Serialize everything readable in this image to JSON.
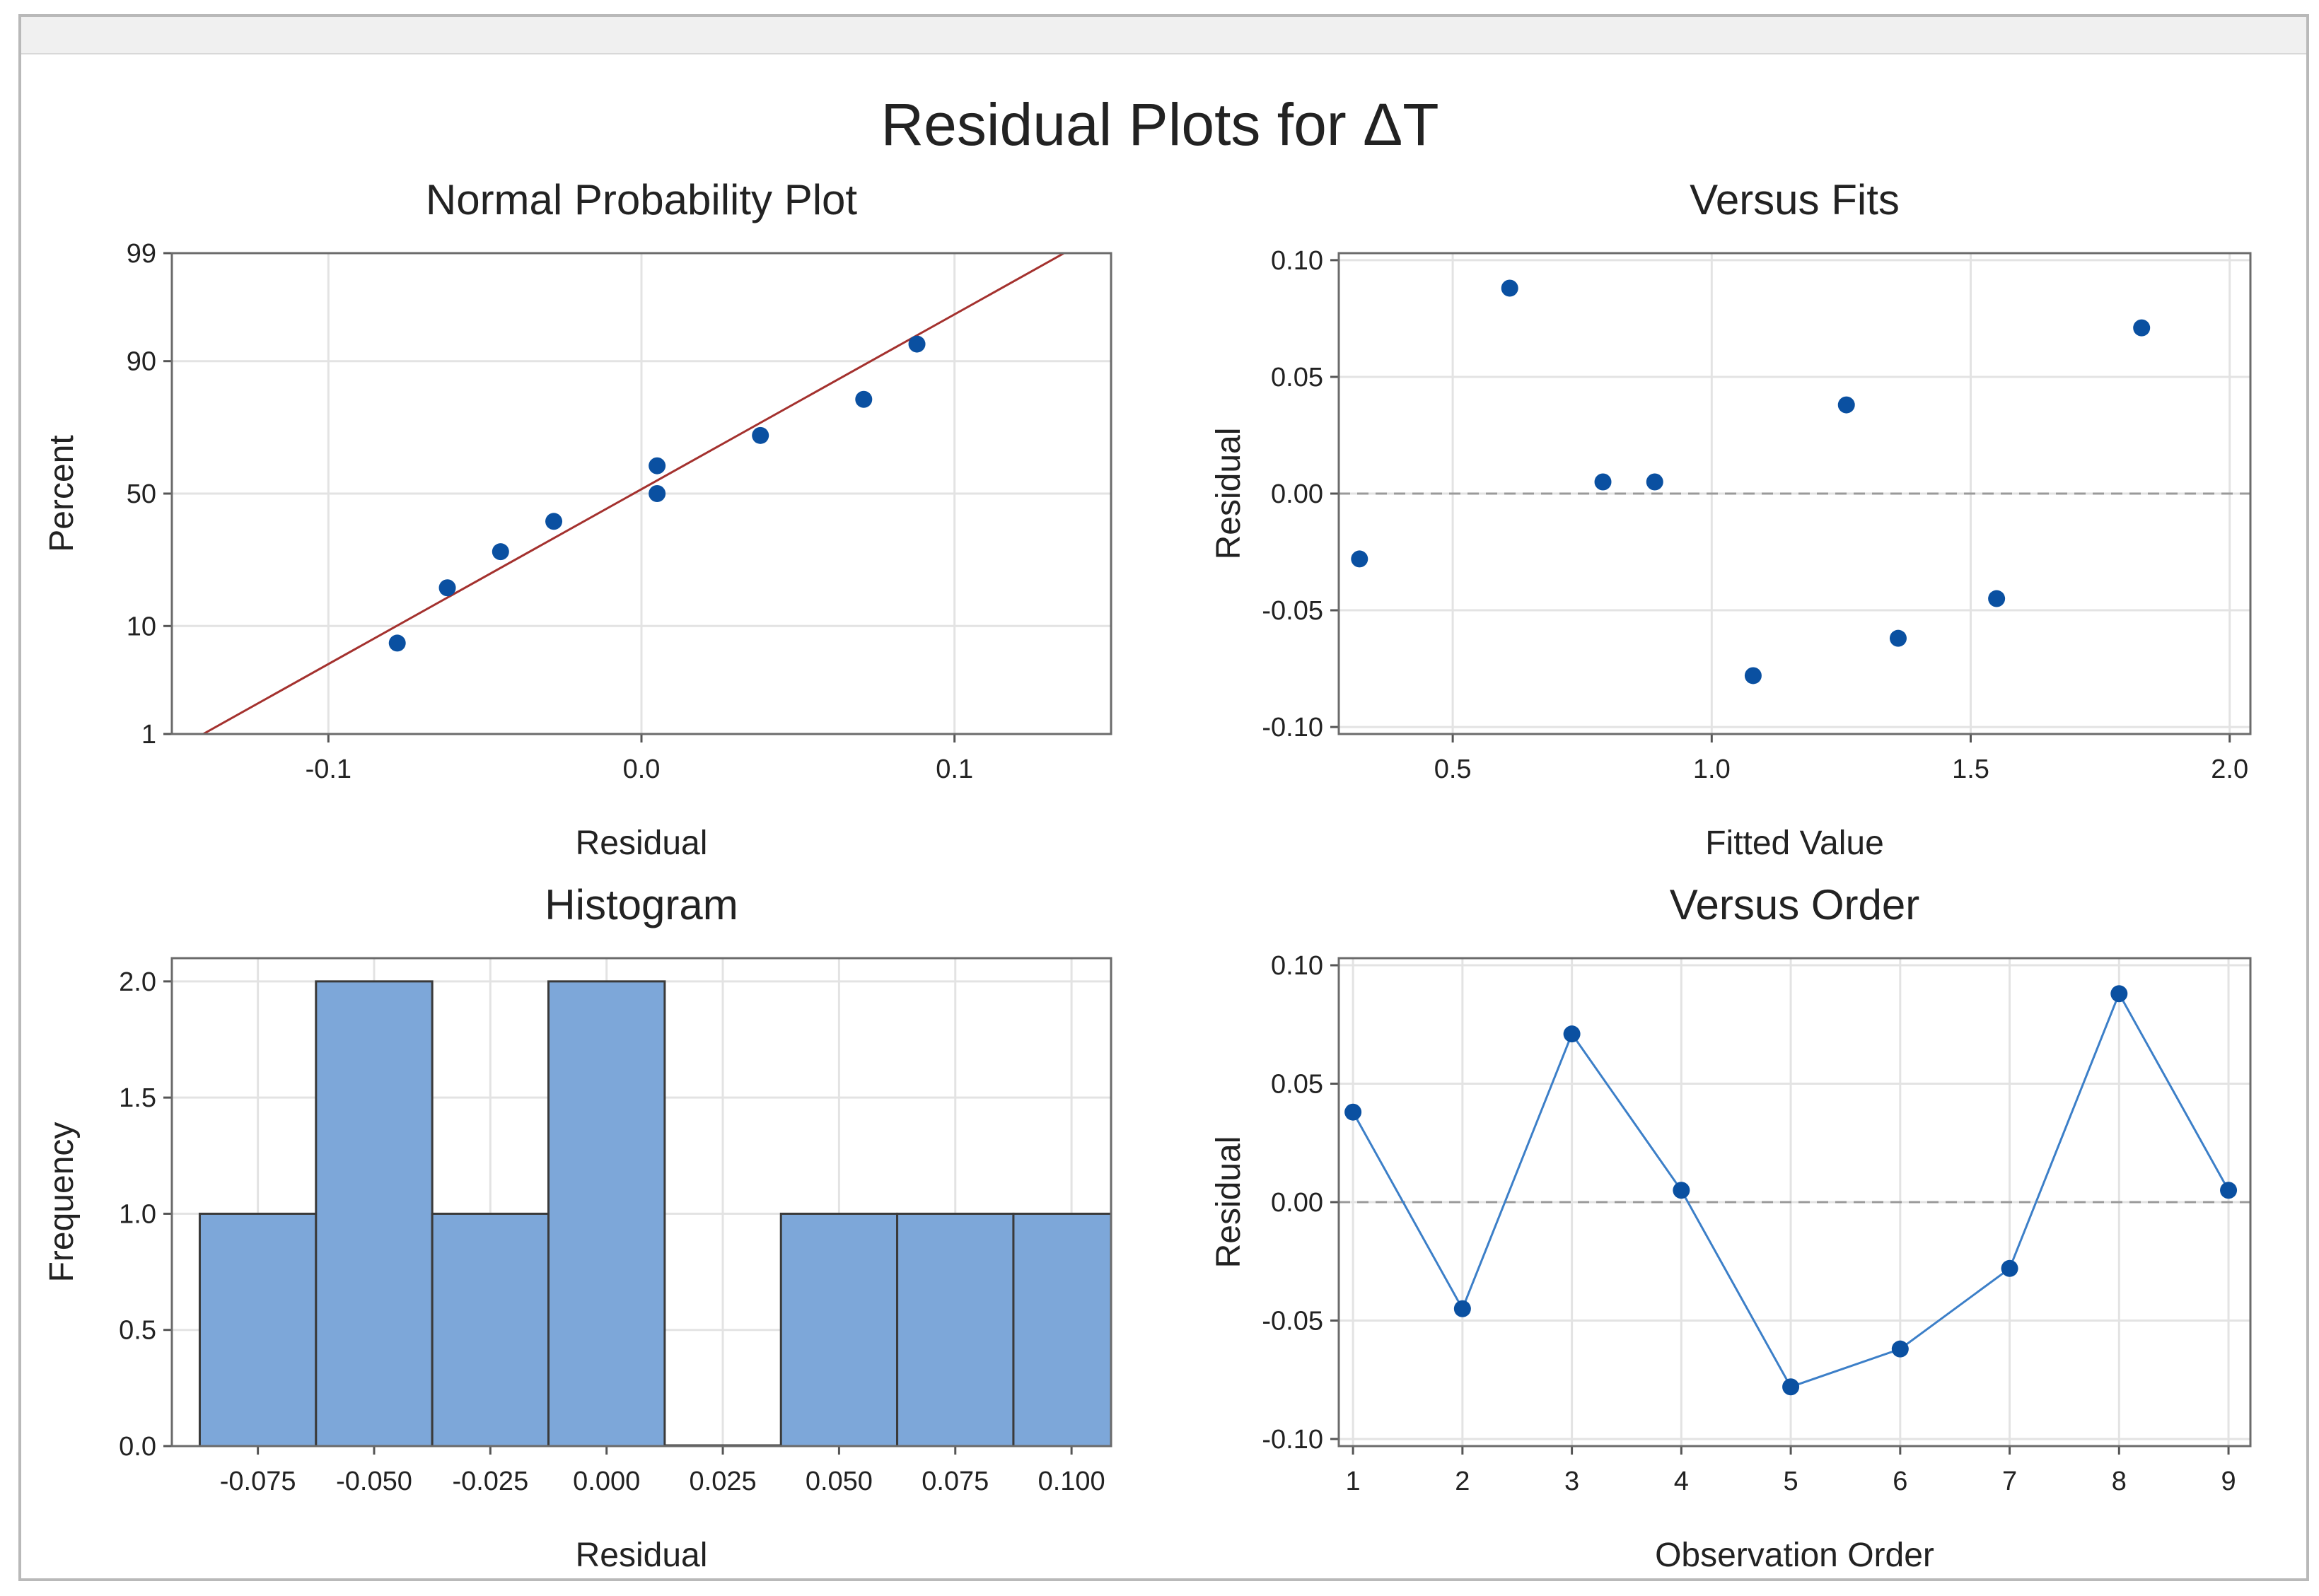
{
  "page": {
    "title": "Residual Plots for ΔT"
  },
  "colors": {
    "marker": "#0A50A1",
    "fit_line": "#A4312E",
    "bar_fill": "#7DA7D9",
    "grid": "#E3E3E3",
    "zero_line": "#9A9A9A"
  },
  "chart_data": [
    {
      "id": "normal",
      "type": "scatter",
      "title": "Normal Probability Plot",
      "xlabel": "Residual",
      "ylabel": "Percent",
      "xlim": [
        -0.15,
        0.15
      ],
      "x_ticks": [
        -0.1,
        0.0,
        0.1
      ],
      "x_tick_labels": [
        "-0.1",
        "0.0",
        "0.1"
      ],
      "y_scale": "normal-probability",
      "ylim": [
        1,
        99
      ],
      "y_ticks": [
        1,
        10,
        50,
        90,
        99
      ],
      "y_tick_labels": [
        "1",
        "10",
        "50",
        "90",
        "99"
      ],
      "points": [
        {
          "x": -0.078,
          "y": 7.4
        },
        {
          "x": -0.062,
          "y": 18.1
        },
        {
          "x": -0.045,
          "y": 28.7
        },
        {
          "x": -0.028,
          "y": 39.4
        },
        {
          "x": 0.005,
          "y": 50.0
        },
        {
          "x": 0.005,
          "y": 60.6
        },
        {
          "x": 0.038,
          "y": 71.3
        },
        {
          "x": 0.071,
          "y": 81.9
        },
        {
          "x": 0.088,
          "y": 92.6
        }
      ],
      "fit_line": {
        "x": [
          -0.14,
          0.135
        ],
        "y": [
          1,
          99
        ]
      },
      "grid": true
    },
    {
      "id": "fits",
      "type": "scatter",
      "title": "Versus Fits",
      "xlabel": "Fitted Value",
      "ylabel": "Residual",
      "xlim": [
        0.28,
        2.04
      ],
      "x_ticks": [
        0.5,
        1.0,
        1.5,
        2.0
      ],
      "x_tick_labels": [
        "0.5",
        "1.0",
        "1.5",
        "2.0"
      ],
      "ylim": [
        -0.103,
        0.103
      ],
      "y_ticks": [
        -0.1,
        -0.05,
        0.0,
        0.05,
        0.1
      ],
      "y_tick_labels": [
        "-0.10",
        "-0.05",
        "0.00",
        "0.05",
        "0.10"
      ],
      "points": [
        {
          "x": 0.32,
          "y": -0.028
        },
        {
          "x": 0.61,
          "y": 0.088
        },
        {
          "x": 0.79,
          "y": 0.005
        },
        {
          "x": 0.89,
          "y": 0.005
        },
        {
          "x": 1.08,
          "y": -0.078
        },
        {
          "x": 1.26,
          "y": 0.038
        },
        {
          "x": 1.36,
          "y": -0.062
        },
        {
          "x": 1.55,
          "y": -0.045
        },
        {
          "x": 1.83,
          "y": 0.071
        }
      ],
      "reference_line": 0,
      "grid": true
    },
    {
      "id": "hist",
      "type": "bar",
      "title": "Histogram",
      "xlabel": "Residual",
      "ylabel": "Frequency",
      "bin_width": 0.025,
      "xlim": [
        -0.0935,
        0.1085
      ],
      "x_ticks": [
        -0.075,
        -0.05,
        -0.025,
        0.0,
        0.025,
        0.05,
        0.075,
        0.1
      ],
      "x_tick_labels": [
        "-0.075",
        "-0.050",
        "-0.025",
        "0.000",
        "0.025",
        "0.050",
        "0.075",
        "0.100"
      ],
      "categories": [
        "-0.075",
        "-0.050",
        "-0.025",
        "0.000",
        "0.025",
        "0.050",
        "0.075",
        "0.100"
      ],
      "values": [
        1,
        2,
        1,
        2,
        0,
        1,
        1,
        1
      ],
      "ylim": [
        0,
        2.1
      ],
      "y_ticks": [
        0.0,
        0.5,
        1.0,
        1.5,
        2.0
      ],
      "y_tick_labels": [
        "0.0",
        "0.5",
        "1.0",
        "1.5",
        "2.0"
      ],
      "grid": true
    },
    {
      "id": "order",
      "type": "line",
      "title": "Versus Order",
      "xlabel": "Observation Order",
      "ylabel": "Residual",
      "xlim": [
        0.87,
        9.2
      ],
      "x_ticks": [
        1,
        2,
        3,
        4,
        5,
        6,
        7,
        8,
        9
      ],
      "x_tick_labels": [
        "1",
        "2",
        "3",
        "4",
        "5",
        "6",
        "7",
        "8",
        "9"
      ],
      "ylim": [
        -0.103,
        0.103
      ],
      "y_ticks": [
        -0.1,
        -0.05,
        0.0,
        0.05,
        0.1
      ],
      "y_tick_labels": [
        "-0.10",
        "-0.05",
        "0.00",
        "0.05",
        "0.10"
      ],
      "x": [
        1,
        2,
        3,
        4,
        5,
        6,
        7,
        8,
        9
      ],
      "values": [
        0.038,
        -0.045,
        0.071,
        0.005,
        -0.078,
        -0.062,
        -0.028,
        0.088,
        0.005
      ],
      "reference_line": 0,
      "grid": true
    }
  ]
}
